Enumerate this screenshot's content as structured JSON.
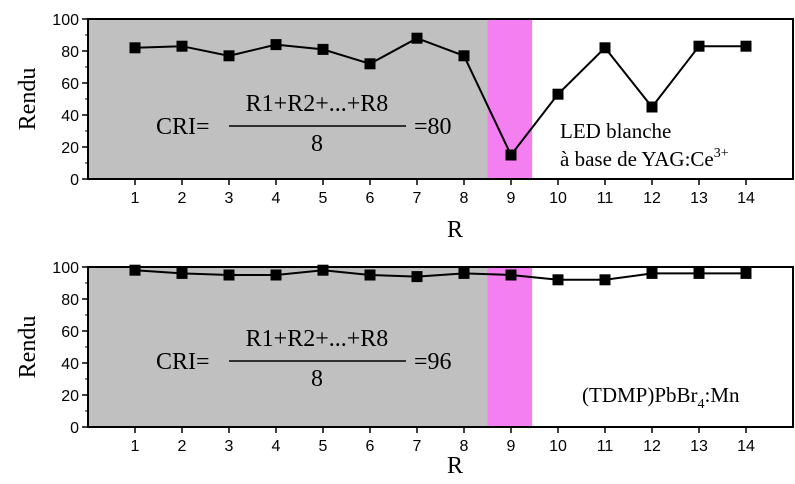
{
  "chart_data": [
    {
      "type": "line",
      "ylabel": "Rendu",
      "xlabel": "R",
      "x": [
        1,
        2,
        3,
        4,
        5,
        6,
        7,
        8,
        9,
        10,
        11,
        12,
        13,
        14
      ],
      "xticks": [
        "1",
        "2",
        "3",
        "4",
        "5",
        "6",
        "7",
        "8",
        "9",
        "10",
        "11",
        "12",
        "13",
        "14"
      ],
      "yticks": [
        "0",
        "20",
        "40",
        "60",
        "80",
        "100"
      ],
      "xlim": [
        0,
        15
      ],
      "ylim": [
        0,
        100
      ],
      "series": [
        {
          "values": [
            82,
            83,
            77,
            84,
            81,
            72,
            88,
            77,
            15,
            53,
            82,
            45,
            83,
            83
          ]
        }
      ],
      "shaded_regions": [
        {
          "from": 0,
          "to": 8.5,
          "color": "#c0c0c0"
        },
        {
          "from": 8.5,
          "to": 9.45,
          "color": "#f37ff0"
        }
      ],
      "formula": {
        "prefix": "CRI=",
        "numerator": "R1+R2+...+R8",
        "denominator": "8",
        "result": "=80"
      },
      "annotation": {
        "line1": "LED blanche",
        "line2": "à base de YAG:Ce",
        "superscript": "3+"
      },
      "series_color": "#000000"
    },
    {
      "type": "line",
      "ylabel": "Rendu",
      "xlabel": "R",
      "x": [
        1,
        2,
        3,
        4,
        5,
        6,
        7,
        8,
        9,
        10,
        11,
        12,
        13,
        14
      ],
      "xticks": [
        "1",
        "2",
        "3",
        "4",
        "5",
        "6",
        "7",
        "8",
        "9",
        "10",
        "11",
        "12",
        "13",
        "14"
      ],
      "yticks": [
        "0",
        "20",
        "40",
        "60",
        "80",
        "100"
      ],
      "xlim": [
        0,
        15
      ],
      "ylim": [
        0,
        100
      ],
      "series": [
        {
          "values": [
            98,
            96,
            95,
            95,
            98,
            95,
            94,
            96,
            95,
            92,
            92,
            96,
            96,
            96
          ]
        }
      ],
      "shaded_regions": [
        {
          "from": 0,
          "to": 8.5,
          "color": "#c0c0c0"
        },
        {
          "from": 8.5,
          "to": 9.45,
          "color": "#f37ff0"
        }
      ],
      "formula": {
        "prefix": "CRI=",
        "numerator": "R1+R2+...+R8",
        "denominator": "8",
        "result": "=96"
      },
      "annotation": {
        "main": "(TDMP)PbBr",
        "subscript": "4",
        "tail": ":Mn"
      },
      "series_color": "#000000"
    }
  ]
}
